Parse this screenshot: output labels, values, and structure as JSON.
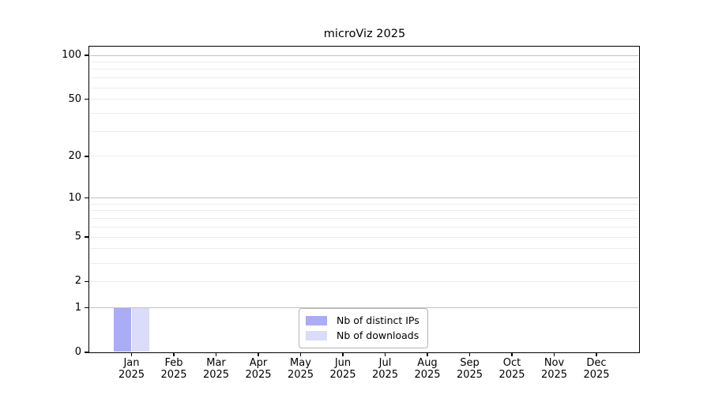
{
  "title": "microViz 2025",
  "chart_data": {
    "type": "bar",
    "title": "microViz 2025",
    "x_ticks": [
      {
        "month": "Jan",
        "year": "2025"
      },
      {
        "month": "Feb",
        "year": "2025"
      },
      {
        "month": "Mar",
        "year": "2025"
      },
      {
        "month": "Apr",
        "year": "2025"
      },
      {
        "month": "May",
        "year": "2025"
      },
      {
        "month": "Jun",
        "year": "2025"
      },
      {
        "month": "Jul",
        "year": "2025"
      },
      {
        "month": "Aug",
        "year": "2025"
      },
      {
        "month": "Sep",
        "year": "2025"
      },
      {
        "month": "Oct",
        "year": "2025"
      },
      {
        "month": "Nov",
        "year": "2025"
      },
      {
        "month": "Dec",
        "year": "2025"
      }
    ],
    "y_axis": {
      "scale": "log1p",
      "tick_values": [
        0,
        1,
        2,
        5,
        10,
        20,
        50,
        100
      ],
      "tick_labels": [
        "0",
        "1",
        "2",
        "5",
        "10",
        "20",
        "50",
        "100"
      ],
      "major_gridline_values": [
        1,
        10,
        100
      ],
      "minor_gridline_values": [
        2,
        3,
        4,
        5,
        6,
        7,
        8,
        9,
        20,
        30,
        40,
        50,
        60,
        70,
        80,
        90
      ]
    },
    "series": [
      {
        "key": "distinct-ips",
        "name": "Nb of distinct IPs",
        "color": "#abacf7",
        "values": [
          1,
          0,
          0,
          0,
          0,
          0,
          0,
          0,
          0,
          0,
          0,
          0
        ]
      },
      {
        "key": "downloads",
        "name": "Nb of downloads",
        "color": "#dbdcf9",
        "values": [
          1,
          0,
          0,
          0,
          0,
          0,
          0,
          0,
          0,
          0,
          0,
          0
        ]
      }
    ],
    "legend": {
      "position": "bottom-center",
      "entries": [
        "Nb of distinct IPs",
        "Nb of downloads"
      ]
    },
    "grid": "horizontal"
  }
}
